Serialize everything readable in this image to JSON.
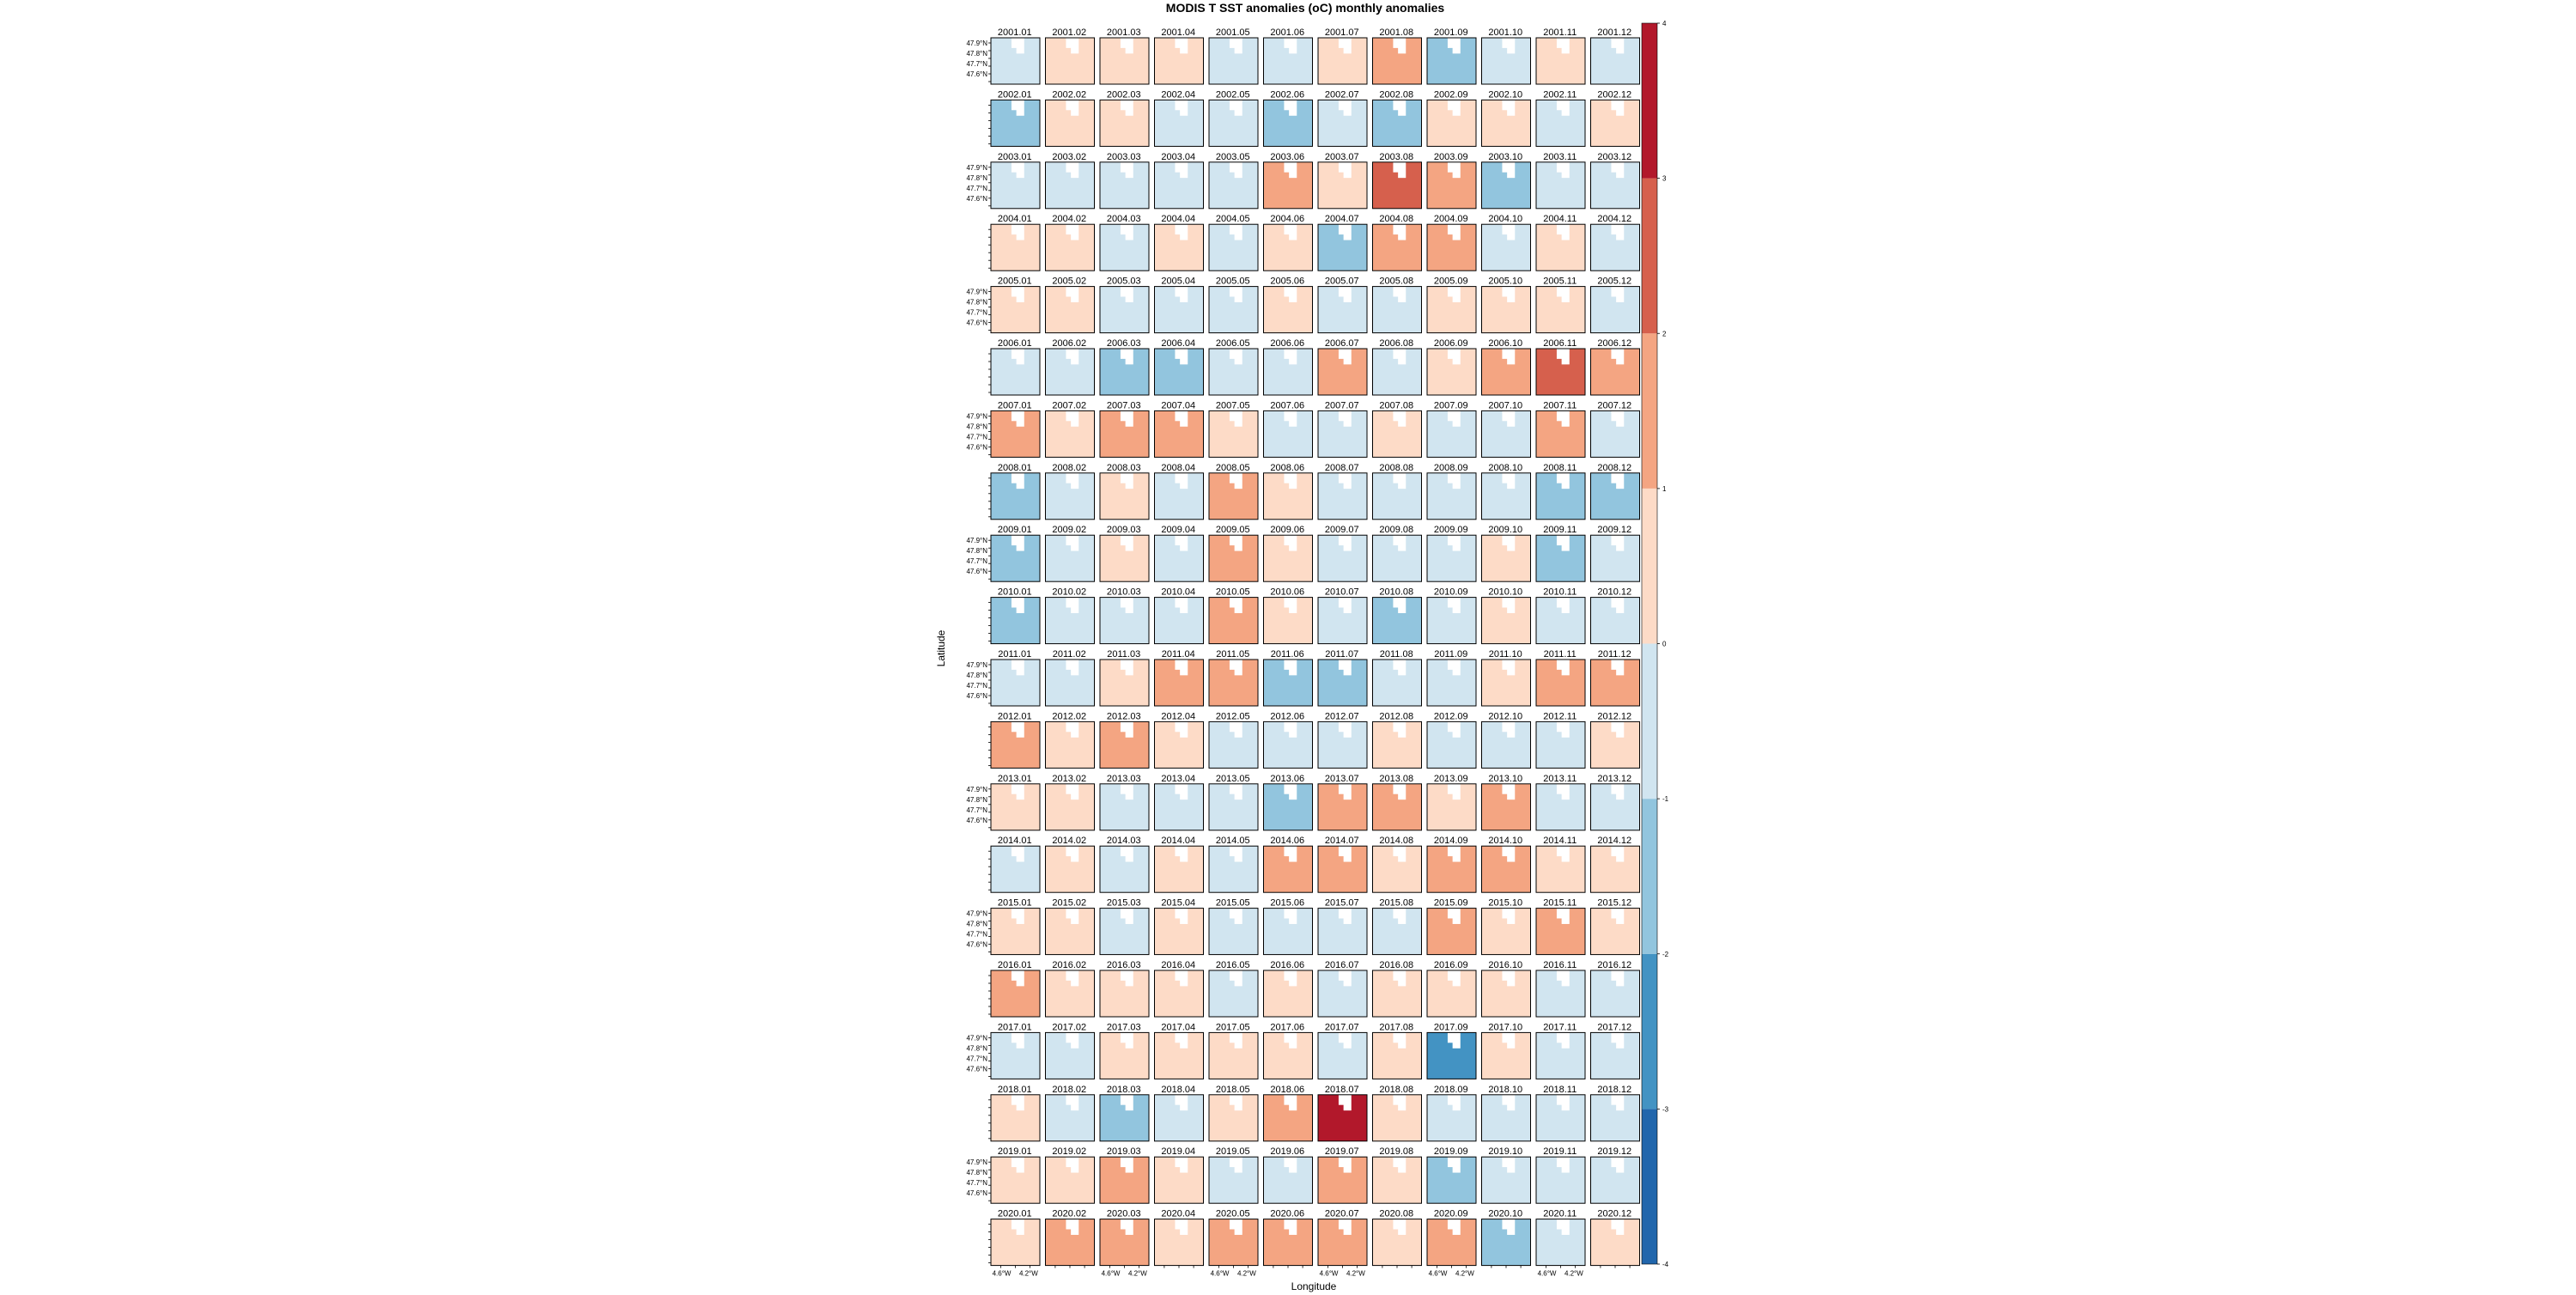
{
  "chart_data": {
    "type": "heatmap",
    "title": "MODIS T SST anomalies (oC) monthly anomalies",
    "xlabel": "Longitude",
    "ylabel": "Latitude",
    "y_tick_labels": [
      "47.9°N",
      "47.8°N",
      "47.7°N",
      "47.6°N"
    ],
    "x_tick_labels": [
      "4.6°W",
      "4.2°W"
    ],
    "years": [
      "2001",
      "2002",
      "2003",
      "2004",
      "2005",
      "2006",
      "2007",
      "2008",
      "2009",
      "2010",
      "2011",
      "2012",
      "2013",
      "2014",
      "2015",
      "2016",
      "2017",
      "2018",
      "2019",
      "2020"
    ],
    "months": [
      "01",
      "02",
      "03",
      "04",
      "05",
      "06",
      "07",
      "08",
      "09",
      "10",
      "11",
      "12"
    ],
    "colorbar": {
      "range": [
        -4,
        4
      ],
      "ticks": [
        -4,
        -3,
        -2,
        -1,
        0,
        1,
        2,
        3,
        4
      ],
      "bins": [
        {
          "from": -4,
          "to": -3,
          "color": "#2166ac"
        },
        {
          "from": -3,
          "to": -2,
          "color": "#4393c3"
        },
        {
          "from": -2,
          "to": -1,
          "color": "#92c5de"
        },
        {
          "from": -1,
          "to": 0,
          "color": "#d1e5f0"
        },
        {
          "from": 0,
          "to": 1,
          "color": "#fddbc7"
        },
        {
          "from": 1,
          "to": 2,
          "color": "#f4a582"
        },
        {
          "from": 2,
          "to": 3,
          "color": "#d6604d"
        },
        {
          "from": 3,
          "to": 4,
          "color": "#b2182b"
        }
      ]
    },
    "panel_values": [
      [
        -0.3,
        0.3,
        0.4,
        0.2,
        -0.2,
        -0.3,
        0.2,
        1.3,
        -1.1,
        -0.6,
        0.1,
        -0.3
      ],
      [
        -1.2,
        0.4,
        0.3,
        -0.5,
        -0.6,
        -1.3,
        -0.6,
        -1.9,
        0.3,
        0.2,
        -0.3,
        0.4
      ],
      [
        -0.6,
        -0.5,
        -0.4,
        -0.5,
        -0.3,
        1.1,
        0.5,
        2.3,
        1.5,
        -1.3,
        -0.5,
        -0.6
      ],
      [
        0.4,
        0.3,
        -0.6,
        0.3,
        -0.3,
        0.6,
        -1.6,
        1.3,
        1.3,
        -0.5,
        0.4,
        -0.3
      ],
      [
        0.4,
        0.2,
        -0.3,
        -0.3,
        -0.4,
        0.3,
        -0.6,
        -0.4,
        0.5,
        0.3,
        0.3,
        -0.4
      ],
      [
        -0.5,
        -0.7,
        -1.5,
        -1.1,
        -0.4,
        -0.7,
        1.9,
        -0.5,
        0.8,
        1.1,
        2.2,
        1.2
      ],
      [
        1.3,
        0.9,
        1.4,
        1.1,
        0.6,
        -0.6,
        -0.8,
        0.3,
        -0.4,
        -0.4,
        1.1,
        -0.4
      ],
      [
        -1.1,
        -0.3,
        0.4,
        -0.3,
        1.6,
        0.6,
        -0.9,
        -0.7,
        -0.6,
        -0.4,
        -1.2,
        -1.2
      ],
      [
        -1.1,
        -0.6,
        0.4,
        -0.4,
        1.1,
        0.4,
        -0.5,
        -0.4,
        -0.3,
        0.4,
        -1.1,
        -0.5
      ],
      [
        -1.1,
        -1.0,
        -0.9,
        -0.6,
        1.2,
        0.6,
        -0.6,
        -1.9,
        -0.5,
        0.3,
        -0.4,
        -0.6
      ],
      [
        -0.6,
        -0.5,
        0.4,
        1.2,
        1.0,
        -1.3,
        -1.6,
        -0.4,
        -0.5,
        0.8,
        1.2,
        1.1
      ],
      [
        1.1,
        0.4,
        1.3,
        0.4,
        -0.4,
        -0.6,
        -0.5,
        0.4,
        -0.4,
        -0.4,
        -0.5,
        0.4
      ],
      [
        0.3,
        0.4,
        -0.6,
        -0.9,
        -0.6,
        -1.9,
        1.2,
        1.1,
        0.6,
        1.1,
        -0.5,
        -0.4
      ],
      [
        -0.3,
        0.3,
        -0.5,
        0.3,
        -0.9,
        1.0,
        1.1,
        0.3,
        1.2,
        1.3,
        0.7,
        0.9
      ],
      [
        0.5,
        0.6,
        -0.4,
        0.4,
        -0.4,
        -0.6,
        -0.5,
        -0.6,
        1.0,
        0.6,
        1.1,
        0.6
      ],
      [
        1.2,
        0.6,
        0.4,
        0.3,
        -0.3,
        0.4,
        -0.5,
        0.3,
        0.8,
        0.3,
        -0.6,
        -0.3
      ],
      [
        -0.3,
        -0.5,
        0.3,
        0.4,
        0.6,
        0.5,
        -0.4,
        0.3,
        -2.2,
        0.6,
        -0.5,
        -0.4
      ],
      [
        0.4,
        -0.5,
        -1.1,
        -0.6,
        0.6,
        1.6,
        3.5,
        0.8,
        -0.9,
        -0.8,
        -0.6,
        -0.5
      ],
      [
        0.4,
        0.4,
        1.0,
        0.3,
        -0.4,
        -0.6,
        1.5,
        0.4,
        -1.1,
        -0.4,
        -0.5,
        -0.4
      ],
      [
        0.5,
        1.0,
        1.3,
        0.4,
        1.6,
        1.4,
        1.2,
        0.4,
        1.1,
        -1.5,
        -0.3,
        0.3
      ]
    ]
  }
}
